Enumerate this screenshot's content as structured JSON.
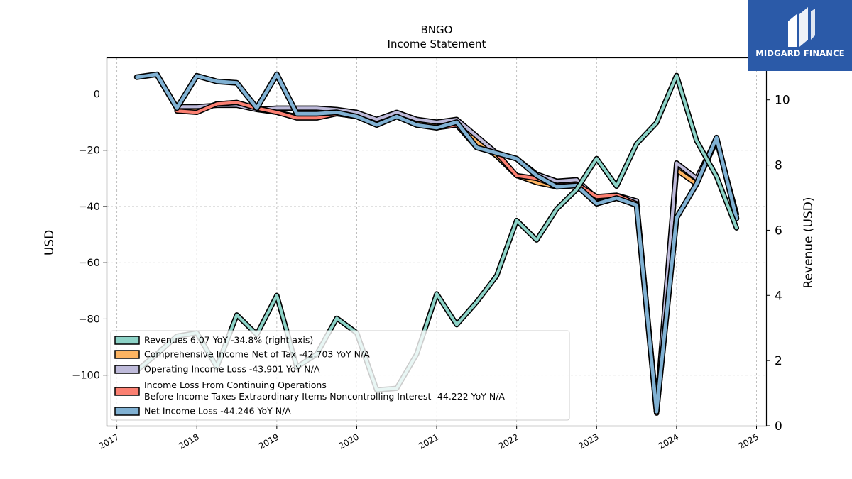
{
  "chart_data": {
    "type": "line",
    "title": "BNGO",
    "subtitle": "Income Statement",
    "ylabel": "USD",
    "ylabel_right": "Revenue (USD)",
    "ylim": [
      -118,
      13
    ],
    "ylim_right": [
      0,
      11.3
    ],
    "yticks": [
      0,
      -20,
      -40,
      -60,
      -80,
      -100
    ],
    "yticks_right": [
      0,
      2,
      4,
      6,
      8,
      10
    ],
    "xlim": [
      2016.87,
      2025.12
    ],
    "xticks": [
      2017,
      2018,
      2019,
      2020,
      2021,
      2022,
      2023,
      2024,
      2025
    ],
    "grid": true,
    "legend_position": "lower-left",
    "x": [
      2017.25,
      2017.5,
      2017.75,
      2018.0,
      2018.25,
      2018.5,
      2018.75,
      2019.0,
      2019.25,
      2019.5,
      2019.75,
      2020.0,
      2020.25,
      2020.5,
      2020.75,
      2021.0,
      2021.25,
      2021.5,
      2021.75,
      2022.0,
      2022.25,
      2022.5,
      2022.75,
      2023.0,
      2023.25,
      2023.5,
      2023.75,
      2024.0,
      2024.25,
      2024.5,
      2024.75
    ],
    "series": [
      {
        "name": "Revenues  6.07  YoY -34.8% (right axis)",
        "axis": "right",
        "color": "#8dd3c7",
        "values": [
          1.7,
          2.2,
          2.75,
          2.85,
          1.8,
          3.4,
          2.8,
          4.0,
          1.8,
          2.2,
          3.3,
          2.85,
          1.1,
          1.15,
          2.2,
          4.05,
          3.1,
          3.8,
          4.6,
          6.3,
          5.7,
          6.65,
          7.25,
          8.2,
          7.35,
          8.65,
          9.3,
          10.75,
          8.75,
          7.65,
          6.07
        ]
      },
      {
        "name": "Comprehensive Income Net of Tax  -42.703 YoY N/A",
        "axis": "left",
        "color": "#fdb462",
        "values": [
          null,
          null,
          -5.5,
          -6.0,
          -3.5,
          -3.0,
          -5.5,
          -6.5,
          -8.0,
          -8.0,
          -7.0,
          -8.0,
          -10.0,
          -7.5,
          -10.0,
          -11.0,
          -10.0,
          -17.0,
          -22.0,
          -29.0,
          -31.5,
          -33.0,
          -32.5,
          -36.5,
          -36.5,
          -38.5,
          -113.0,
          -27.0,
          -32.0,
          -16.5,
          -42.7
        ]
      },
      {
        "name": "Operating Income Loss  -43.901 YoY N/A",
        "axis": "left",
        "color": "#bebada",
        "values": [
          null,
          null,
          -4.5,
          -4.5,
          -4.0,
          -4.0,
          -5.5,
          -5.0,
          -5.0,
          -5.0,
          -5.5,
          -6.5,
          -9.0,
          -6.5,
          -9.0,
          -10.0,
          -9.0,
          -15.0,
          -21.0,
          -23.0,
          -28.5,
          -31.0,
          -30.5,
          -37.0,
          -36.0,
          -38.0,
          -112.0,
          -24.5,
          -30.0,
          -16.0,
          -43.901
        ]
      },
      {
        "name": "Income Loss From Continuing Operations\nBefore Income Taxes Extraordinary Items Noncontrolling Interest  -44.222 YoY N/A",
        "axis": "left",
        "color": "#fb8072",
        "values": [
          null,
          null,
          -6.0,
          -6.5,
          -3.5,
          -3.0,
          -5.0,
          -6.5,
          -8.5,
          -8.5,
          -7.0,
          -8.0,
          -11.0,
          -8.0,
          -11.0,
          -12.0,
          -11.0,
          -19.0,
          -21.0,
          -29.0,
          -30.0,
          -32.5,
          -32.0,
          -36.5,
          -36.0,
          -39.0,
          -113.5,
          -44.0,
          -32.0,
          -16.0,
          -44.222
        ]
      },
      {
        "name": "Net Income Loss  -44.246 YoY N/A",
        "axis": "left",
        "color": "#80b1d3",
        "values": [
          6.0,
          7.0,
          -5.0,
          6.5,
          4.5,
          4.0,
          -5.0,
          7.0,
          -7.0,
          -7.0,
          -6.5,
          -8.0,
          -11.0,
          -8.0,
          -11.0,
          -12.0,
          -10.0,
          -19.0,
          -21.0,
          -23.0,
          -29.0,
          -33.0,
          -32.5,
          -39.0,
          -37.0,
          -39.5,
          -113.0,
          -44.0,
          -32.0,
          -15.5,
          -44.246
        ]
      }
    ]
  },
  "branding": {
    "name": "MIDGARD FINANCE"
  }
}
